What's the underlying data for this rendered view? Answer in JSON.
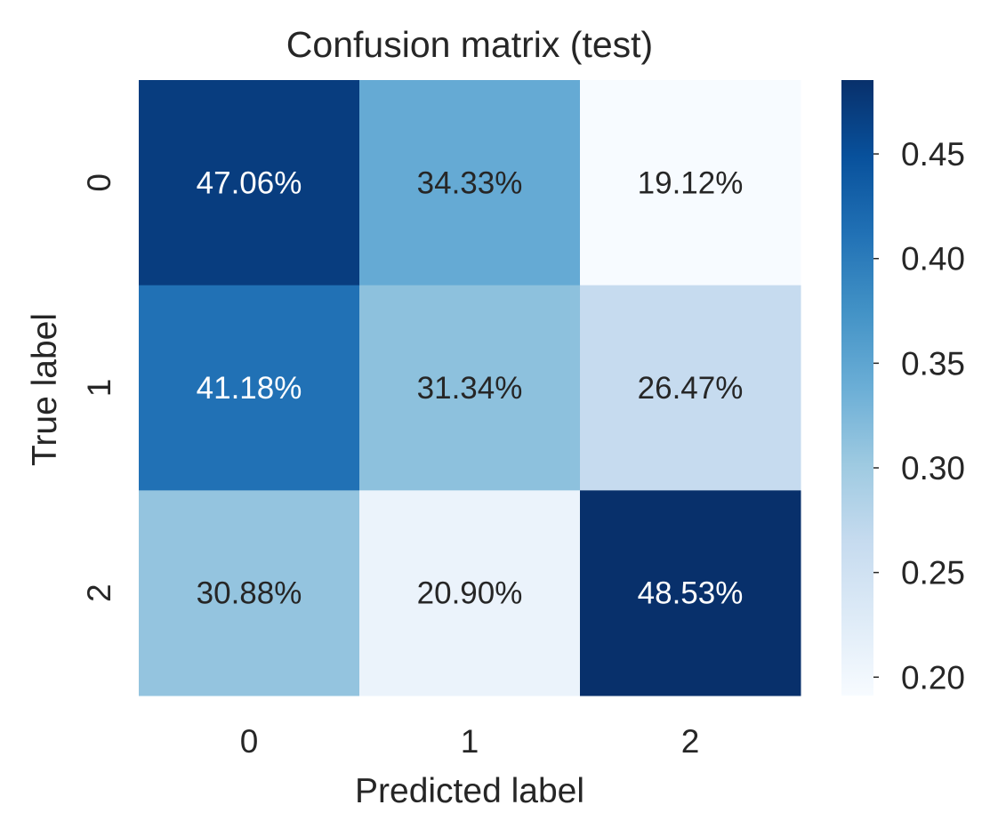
{
  "chart_data": {
    "type": "heatmap",
    "title": "Confusion matrix (test)",
    "xlabel": "Predicted label",
    "ylabel": "True label",
    "x_categories": [
      "0",
      "1",
      "2"
    ],
    "y_categories": [
      "0",
      "1",
      "2"
    ],
    "values": [
      [
        0.4706,
        0.3433,
        0.1912
      ],
      [
        0.4118,
        0.3134,
        0.2647
      ],
      [
        0.3088,
        0.209,
        0.4853
      ]
    ],
    "cell_labels": [
      [
        "47.06%",
        "34.33%",
        "19.12%"
      ],
      [
        "41.18%",
        "31.34%",
        "26.47%"
      ],
      [
        "30.88%",
        "20.90%",
        "48.53%"
      ]
    ],
    "colormap": "Blues",
    "colorbar": {
      "range": [
        0.1912,
        0.4853
      ],
      "ticks": [
        0.2,
        0.25,
        0.3,
        0.35,
        0.4,
        0.45
      ],
      "tick_labels": [
        "0.20",
        "0.25",
        "0.30",
        "0.35",
        "0.40",
        "0.45"
      ]
    },
    "grid": false,
    "legend": "colorbar-right"
  }
}
